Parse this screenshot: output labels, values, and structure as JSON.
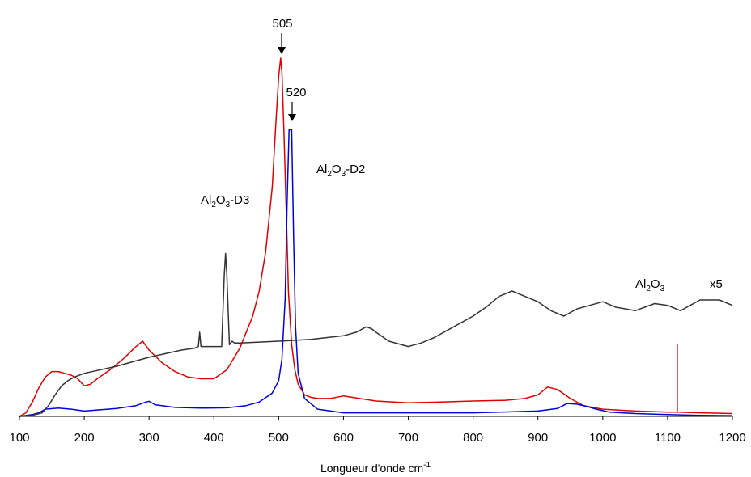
{
  "chart_data": {
    "type": "line",
    "xlabel": "Longueur d'onde cm",
    "xlabel_sup": "-1",
    "xlim": [
      100,
      1200
    ],
    "ylim": [
      0,
      100
    ],
    "yaxis_visible": false,
    "grid": false,
    "x_ticks": [
      "100",
      "200",
      "300",
      "400",
      "500",
      "600",
      "700",
      "800",
      "900",
      "1000",
      "1100",
      "1200"
    ],
    "series": [
      {
        "color": "#e00000",
        "x": [
          100,
          110,
          120,
          130,
          140,
          150,
          160,
          170,
          180,
          190,
          200,
          210,
          220,
          240,
          260,
          280,
          290,
          300,
          320,
          340,
          360,
          380,
          400,
          420,
          440,
          460,
          470,
          480,
          490,
          495,
          500,
          503,
          505,
          508,
          512,
          515,
          520,
          525,
          530,
          540,
          550,
          560,
          580,
          600,
          650,
          700,
          750,
          800,
          850,
          880,
          900,
          915,
          930,
          950,
          970,
          1000,
          1050,
          1100,
          1115,
          1115,
          1115,
          1115,
          1116,
          1150,
          1200
        ],
        "y": [
          0,
          1,
          4,
          8,
          11,
          12.5,
          12.5,
          12,
          11.5,
          10.5,
          8.5,
          9,
          10.5,
          13,
          16,
          19.5,
          21,
          18.5,
          15,
          12.5,
          11,
          10.5,
          10.5,
          13,
          19,
          28,
          35,
          46,
          64,
          80,
          95,
          100,
          96,
          80,
          55,
          35,
          20,
          13,
          9,
          6,
          5.3,
          5,
          5,
          5.7,
          4.3,
          3.8,
          4,
          4.3,
          4.5,
          5,
          6,
          8.2,
          7.5,
          5,
          3,
          2,
          1.5,
          1.2,
          1.2,
          20,
          1.2,
          1.2,
          1.2,
          1,
          0.8
        ]
      },
      {
        "color": "#0000e0",
        "x": [
          100,
          120,
          130,
          140,
          160,
          180,
          200,
          250,
          280,
          295,
          300,
          310,
          340,
          380,
          420,
          450,
          470,
          490,
          500,
          505,
          510,
          513,
          516,
          519,
          520,
          521,
          523,
          526,
          530,
          540,
          560,
          600,
          700,
          800,
          900,
          930,
          945,
          960,
          975,
          990,
          1010,
          1050,
          1100,
          1150,
          1200
        ],
        "y": [
          0,
          0.5,
          1,
          2,
          2.3,
          2,
          1.5,
          2.2,
          3,
          4,
          4.2,
          3.2,
          2.5,
          2.3,
          2.4,
          3,
          4,
          6.5,
          10,
          16,
          33,
          60,
          80,
          80,
          80,
          70,
          50,
          25,
          12,
          5,
          2,
          1,
          1,
          1,
          1.5,
          2.2,
          3.6,
          3.4,
          2.8,
          2,
          1.2,
          0.8,
          0.5,
          0.3,
          0.2
        ]
      },
      {
        "color": "#333333",
        "x": [
          100,
          120,
          135,
          145,
          155,
          165,
          175,
          185,
          200,
          250,
          300,
          350,
          370,
          376,
          378,
          380,
          386,
          400,
          412,
          416,
          418,
          420,
          424,
          428,
          432,
          440,
          500,
          520,
          550,
          600,
          620,
          635,
          643,
          650,
          670,
          700,
          720,
          740,
          760,
          800,
          820,
          840,
          860,
          880,
          900,
          920,
          940,
          960,
          980,
          1000,
          1020,
          1050,
          1080,
          1100,
          1120,
          1150,
          1180,
          1200
        ],
        "y": [
          0,
          0.3,
          1,
          3,
          6,
          8.5,
          10,
          11,
          12,
          14,
          16.5,
          18.5,
          19,
          19.5,
          23.5,
          19.5,
          19.5,
          19.5,
          19.5,
          39.5,
          45.5,
          39.5,
          20,
          21,
          20.5,
          20.5,
          21,
          21.2,
          21.5,
          22.5,
          23.5,
          25,
          24.5,
          23.5,
          21,
          19.5,
          20.5,
          22,
          24,
          28,
          30.5,
          33.5,
          35,
          33.5,
          32,
          29.5,
          28,
          30,
          31,
          32,
          30.5,
          29.5,
          31.5,
          31,
          29.5,
          32.5,
          32.5,
          31
        ]
      }
    ],
    "annotations": [
      {
        "text": "505",
        "arrow_at_x": 505
      },
      {
        "text": "520",
        "arrow_at_x": 520
      }
    ],
    "series_labels": {
      "d2": {
        "prefix": "Al",
        "sub1": "2",
        "mid": "O",
        "sub2": "3",
        "suffix": "-D2"
      },
      "d3": {
        "prefix": "Al",
        "sub1": "2",
        "mid": "O",
        "sub2": "3",
        "suffix": "-D3"
      },
      "al2o3": {
        "prefix": "Al",
        "sub1": "2",
        "mid": "O",
        "sub2": "3",
        "suffix": ""
      },
      "scale": "x5"
    }
  }
}
